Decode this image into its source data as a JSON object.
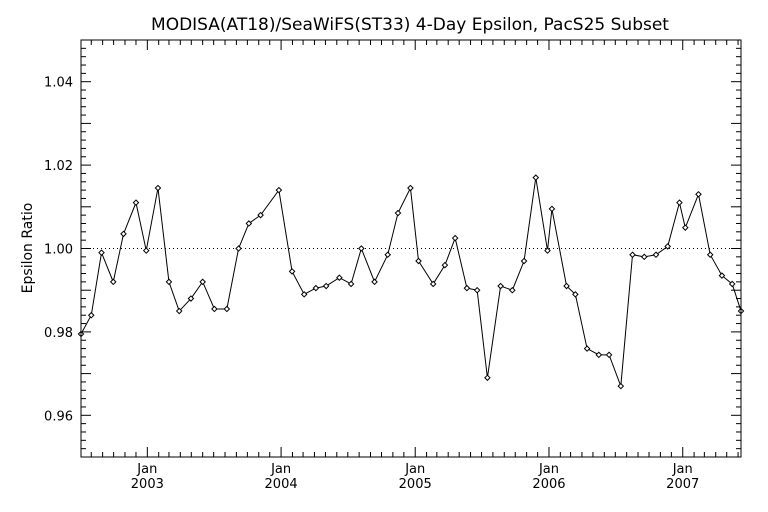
{
  "chart_data": {
    "type": "line",
    "title": "MODISA(AT18)/SeaWiFS(ST33) 4-Day Epsilon, PacS25 Subset",
    "xlabel": "",
    "ylabel": "Epsilon Ratio",
    "xlim": [
      "2002-07-04",
      "2007-06-09"
    ],
    "ylim": [
      0.95,
      1.05
    ],
    "y_ticks": [
      "0.96",
      "0.98",
      "1.00",
      "1.02",
      "1.04"
    ],
    "x_ticks": [
      {
        "month": "Jan",
        "year": "2003",
        "date": "2003-01-01"
      },
      {
        "month": "Jan",
        "year": "2004",
        "date": "2004-01-01"
      },
      {
        "month": "Jan",
        "year": "2005",
        "date": "2005-01-01"
      },
      {
        "month": "Jan",
        "year": "2006",
        "date": "2006-01-01"
      },
      {
        "month": "Jan",
        "year": "2007",
        "date": "2007-01-01"
      }
    ],
    "reference_line": {
      "y": 1.0,
      "style": "dotted"
    },
    "grid": false,
    "series": [
      {
        "points": [
          [
            "2002-07-04",
            0.9795
          ],
          [
            "2002-08-01",
            0.984
          ],
          [
            "2002-08-29",
            0.999
          ],
          [
            "2002-09-30",
            0.992
          ],
          [
            "2002-10-28",
            1.0035
          ],
          [
            "2002-12-01",
            1.011
          ],
          [
            "2002-12-29",
            0.9995
          ],
          [
            "2003-01-30",
            1.0145
          ],
          [
            "2003-03-01",
            0.992
          ],
          [
            "2003-03-29",
            0.985
          ],
          [
            "2003-04-30",
            0.988
          ],
          [
            "2003-06-01",
            0.992
          ],
          [
            "2003-07-03",
            0.9855
          ],
          [
            "2003-08-06",
            0.9855
          ],
          [
            "2003-09-07",
            1.0
          ],
          [
            "2003-10-05",
            1.006
          ],
          [
            "2003-11-06",
            1.008
          ],
          [
            "2003-12-26",
            1.014
          ],
          [
            "2004-01-31",
            0.9945
          ],
          [
            "2004-03-04",
            0.989
          ],
          [
            "2004-04-05",
            0.9905
          ],
          [
            "2004-05-03",
            0.991
          ],
          [
            "2004-06-08",
            0.993
          ],
          [
            "2004-07-10",
            0.9915
          ],
          [
            "2004-08-07",
            1.0
          ],
          [
            "2004-09-12",
            0.992
          ],
          [
            "2004-10-18",
            0.9985
          ],
          [
            "2004-11-15",
            1.0085
          ],
          [
            "2004-12-19",
            1.0145
          ],
          [
            "2005-01-10",
            0.997
          ],
          [
            "2005-02-19",
            0.9915
          ],
          [
            "2005-03-23",
            0.996
          ],
          [
            "2005-04-20",
            1.0025
          ],
          [
            "2005-05-22",
            0.9905
          ],
          [
            "2005-06-19",
            0.99
          ],
          [
            "2005-07-17",
            0.969
          ],
          [
            "2005-08-22",
            0.991
          ],
          [
            "2005-09-23",
            0.99
          ],
          [
            "2005-10-25",
            0.997
          ],
          [
            "2005-11-26",
            1.017
          ],
          [
            "2005-12-28",
            0.9995
          ],
          [
            "2006-01-09",
            1.0095
          ],
          [
            "2006-02-18",
            0.991
          ],
          [
            "2006-03-14",
            0.989
          ],
          [
            "2006-04-15",
            0.976
          ],
          [
            "2006-05-17",
            0.9745
          ],
          [
            "2006-06-14",
            0.9745
          ],
          [
            "2006-07-16",
            0.967
          ],
          [
            "2006-08-17",
            0.9985
          ],
          [
            "2006-09-18",
            0.998
          ],
          [
            "2006-10-20",
            0.9985
          ],
          [
            "2006-11-21",
            1.0005
          ],
          [
            "2006-12-23",
            1.011
          ],
          [
            "2007-01-08",
            1.005
          ],
          [
            "2007-02-13",
            1.013
          ],
          [
            "2007-03-17",
            0.9985
          ],
          [
            "2007-04-18",
            0.9935
          ],
          [
            "2007-05-16",
            0.9915
          ],
          [
            "2007-06-09",
            0.985
          ]
        ]
      }
    ]
  }
}
